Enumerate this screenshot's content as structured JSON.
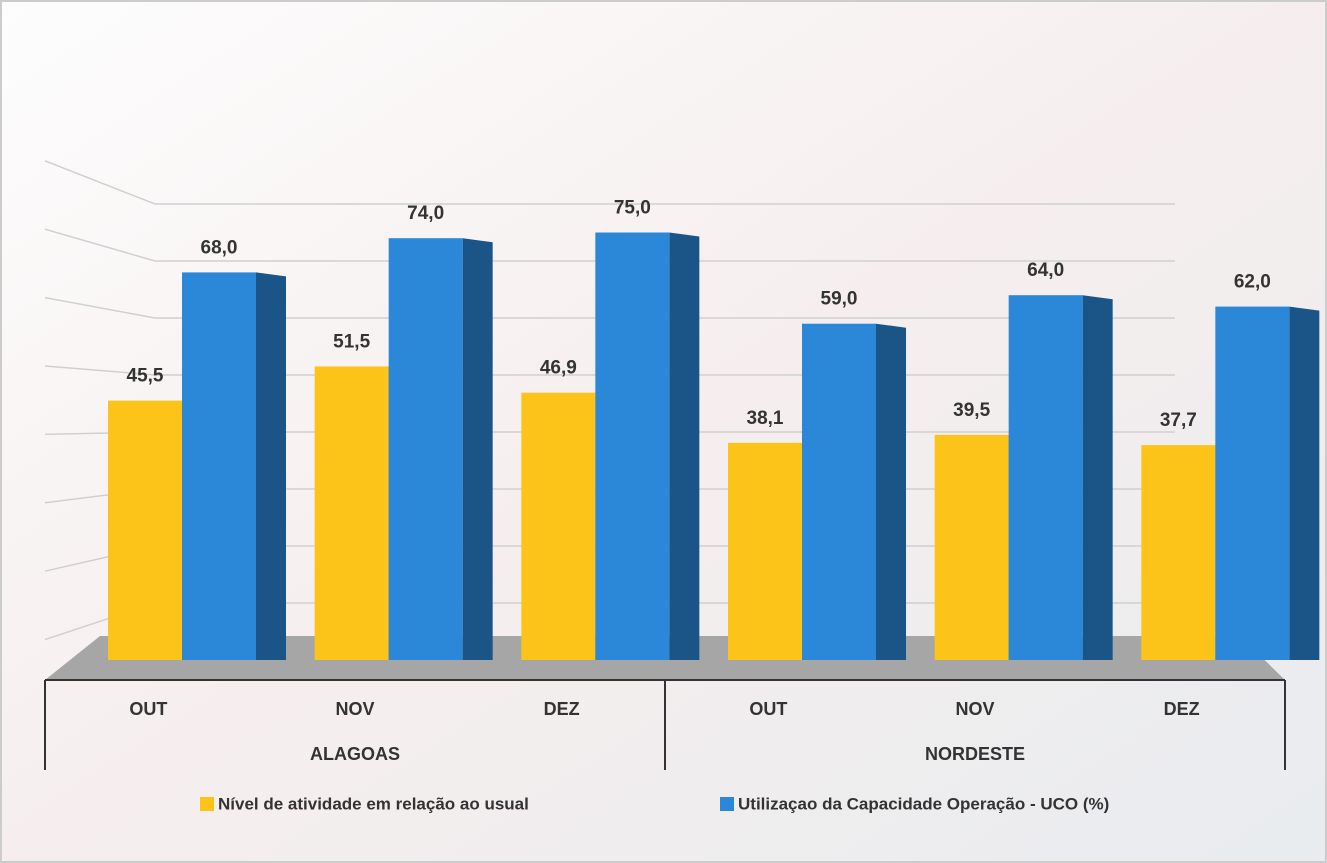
{
  "chart_data": {
    "type": "bar3d",
    "categories": [
      "OUT",
      "NOV",
      "DEZ",
      "OUT",
      "NOV",
      "DEZ"
    ],
    "groups": [
      {
        "name": "ALAGOAS",
        "size": 3
      },
      {
        "name": "NORDESTE",
        "size": 3
      }
    ],
    "series": [
      {
        "name": "Nível de atividade em relação ao usual",
        "color": "#fcc419",
        "values": [
          45.5,
          51.5,
          46.9,
          38.1,
          39.5,
          37.7
        ],
        "value_labels": [
          "45,5",
          "51,5",
          "46,9",
          "38,1",
          "39,5",
          "37,7"
        ]
      },
      {
        "name": "Utilizaçao da Capacidade Operação - UCO (%)",
        "color": "#2b88d8",
        "values": [
          68,
          74,
          75,
          59,
          64,
          62
        ],
        "value_labels": [
          "68,0",
          "74,0",
          "75,0",
          "59,0",
          "64,0",
          "62,0"
        ]
      }
    ],
    "ylim": [
      0,
      80
    ],
    "yticks": [
      10,
      20,
      30,
      40,
      50,
      60,
      70,
      80
    ],
    "grid": true,
    "legend": "bottom"
  }
}
